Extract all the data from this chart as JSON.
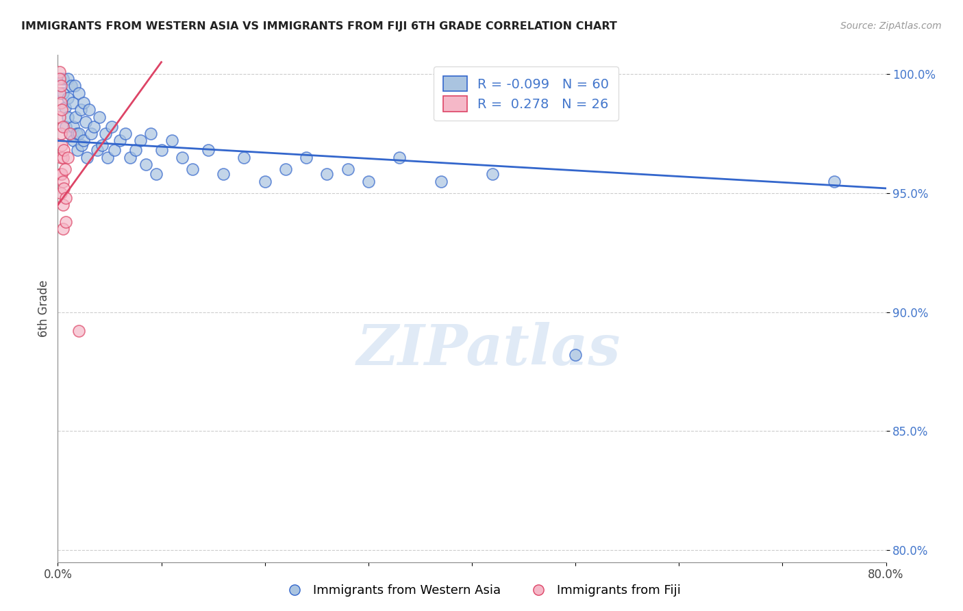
{
  "title": "IMMIGRANTS FROM WESTERN ASIA VS IMMIGRANTS FROM FIJI 6TH GRADE CORRELATION CHART",
  "source": "Source: ZipAtlas.com",
  "ylabel": "6th Grade",
  "x_min": 0.0,
  "x_max": 0.8,
  "y_min": 0.795,
  "y_max": 1.008,
  "x_ticks": [
    0.0,
    0.1,
    0.2,
    0.3,
    0.4,
    0.5,
    0.6,
    0.7,
    0.8
  ],
  "x_tick_labels": [
    "0.0%",
    "",
    "",
    "",
    "",
    "",
    "",
    "",
    "80.0%"
  ],
  "y_ticks": [
    0.8,
    0.85,
    0.9,
    0.95,
    1.0
  ],
  "y_tick_labels": [
    "80.0%",
    "85.0%",
    "90.0%",
    "95.0%",
    "100.0%"
  ],
  "blue_R": -0.099,
  "blue_N": 60,
  "pink_R": 0.278,
  "pink_N": 26,
  "blue_color": "#aac4e0",
  "pink_color": "#f5b8c8",
  "blue_line_color": "#3366cc",
  "pink_line_color": "#dd4466",
  "legend_label_blue": "Immigrants from Western Asia",
  "legend_label_pink": "Immigrants from Fiji",
  "watermark": "ZIPatlas",
  "blue_x": [
    0.005,
    0.005,
    0.007,
    0.008,
    0.01,
    0.01,
    0.01,
    0.012,
    0.013,
    0.014,
    0.015,
    0.015,
    0.016,
    0.017,
    0.018,
    0.019,
    0.02,
    0.02,
    0.022,
    0.023,
    0.025,
    0.025,
    0.027,
    0.028,
    0.03,
    0.032,
    0.035,
    0.038,
    0.04,
    0.043,
    0.046,
    0.048,
    0.052,
    0.055,
    0.06,
    0.065,
    0.07,
    0.075,
    0.08,
    0.085,
    0.09,
    0.095,
    0.1,
    0.11,
    0.12,
    0.13,
    0.145,
    0.16,
    0.18,
    0.2,
    0.22,
    0.24,
    0.26,
    0.28,
    0.3,
    0.33,
    0.37,
    0.42,
    0.5,
    0.75
  ],
  "blue_y": [
    0.998,
    0.992,
    0.986,
    0.978,
    0.998,
    0.99,
    0.982,
    0.975,
    0.995,
    0.988,
    0.978,
    0.972,
    0.995,
    0.982,
    0.975,
    0.968,
    0.992,
    0.975,
    0.985,
    0.97,
    0.988,
    0.972,
    0.98,
    0.965,
    0.985,
    0.975,
    0.978,
    0.968,
    0.982,
    0.97,
    0.975,
    0.965,
    0.978,
    0.968,
    0.972,
    0.975,
    0.965,
    0.968,
    0.972,
    0.962,
    0.975,
    0.958,
    0.968,
    0.972,
    0.965,
    0.96,
    0.968,
    0.958,
    0.965,
    0.955,
    0.96,
    0.965,
    0.958,
    0.96,
    0.955,
    0.965,
    0.955,
    0.958,
    0.882,
    0.955
  ],
  "pink_x": [
    0.002,
    0.002,
    0.002,
    0.002,
    0.003,
    0.003,
    0.003,
    0.003,
    0.003,
    0.003,
    0.004,
    0.004,
    0.004,
    0.005,
    0.005,
    0.005,
    0.005,
    0.005,
    0.006,
    0.006,
    0.007,
    0.008,
    0.008,
    0.01,
    0.012,
    0.02
  ],
  "pink_y": [
    1.001,
    0.998,
    0.992,
    0.982,
    0.995,
    0.988,
    0.975,
    0.965,
    0.958,
    0.95,
    0.985,
    0.97,
    0.958,
    0.978,
    0.965,
    0.955,
    0.945,
    0.935,
    0.968,
    0.952,
    0.96,
    0.948,
    0.938,
    0.965,
    0.975,
    0.892
  ],
  "blue_trend_x": [
    0.0,
    0.8
  ],
  "blue_trend_y": [
    0.972,
    0.952
  ],
  "pink_trend_x": [
    0.0,
    0.1
  ],
  "pink_trend_y": [
    0.945,
    1.005
  ]
}
